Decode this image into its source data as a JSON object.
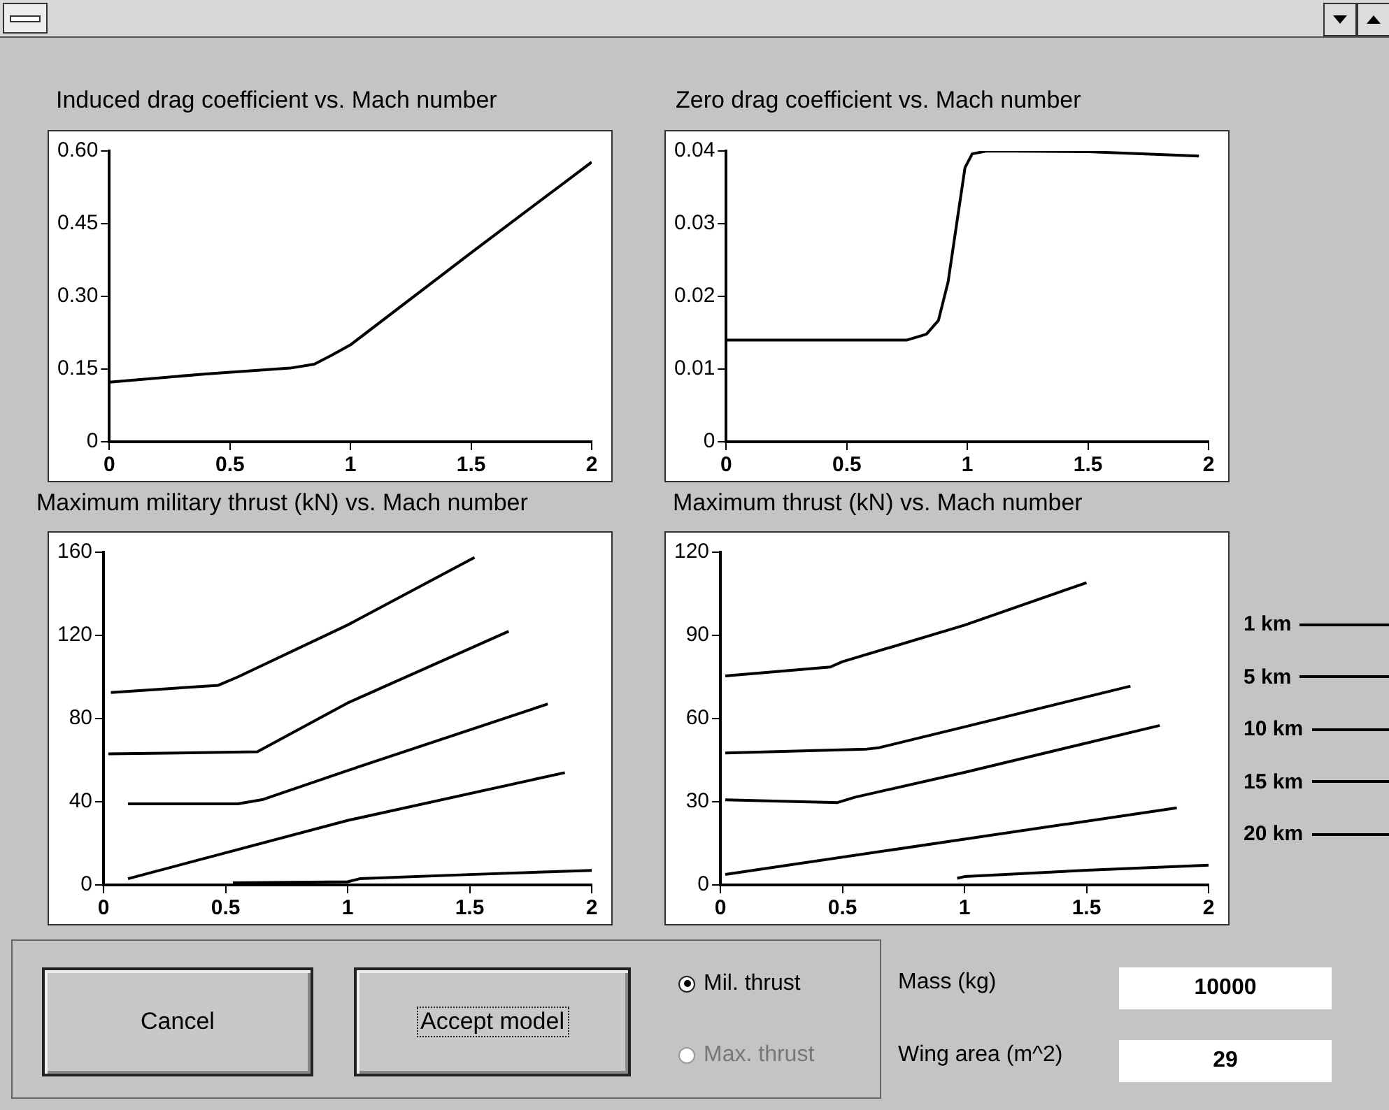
{
  "chart_data": [
    {
      "type": "line",
      "title": "Induced drag coefficient vs. Mach number",
      "marker": "none",
      "grid": false,
      "xlim": [
        0,
        2
      ],
      "xticks": [
        0,
        0.5,
        1,
        1.5,
        2
      ],
      "ylim": [
        0,
        0.6
      ],
      "yticks": [
        0,
        0.15,
        {
          "value": 0.3,
          "label": "0.30"
        },
        0.45,
        {
          "value": 0.6,
          "label": "0.60"
        }
      ],
      "series": [
        {
          "color": "#000000",
          "x": [
            0,
            0.4,
            0.75,
            0.85,
            0.92,
            1.0,
            1.5,
            2
          ],
          "values": [
            0.123,
            0.14,
            0.152,
            0.16,
            0.178,
            0.2,
            0.39,
            0.577
          ]
        }
      ]
    },
    {
      "type": "line",
      "title": "Zero drag coefficient vs. Mach number",
      "marker": "none",
      "grid": false,
      "xlim": [
        0,
        2
      ],
      "xticks": [
        0,
        0.5,
        1,
        1.5,
        2
      ],
      "ylim": [
        0,
        0.04
      ],
      "yticks": [
        0,
        0.01,
        0.02,
        0.03,
        0.04
      ],
      "series": [
        {
          "color": "#000000",
          "x": [
            0,
            0.75,
            0.83,
            0.88,
            0.92,
            0.96,
            0.99,
            1.02,
            1.08,
            1.5,
            1.96
          ],
          "values": [
            0.014,
            0.014,
            0.0148,
            0.0167,
            0.022,
            0.031,
            0.0377,
            0.0396,
            0.04,
            0.0399,
            0.0393
          ]
        }
      ]
    },
    {
      "type": "line",
      "title": "Maximum military thrust (kN) vs. Mach number",
      "marker": "none",
      "grid": false,
      "xlim": [
        0,
        2
      ],
      "xticks": [
        0,
        0.5,
        1,
        1.5,
        2
      ],
      "ylim": [
        0,
        160
      ],
      "yticks": [
        0,
        40,
        80,
        120,
        160
      ],
      "series": [
        {
          "color": "#000000",
          "x": [
            0.03,
            0.47,
            0.55,
            1.0,
            1.52
          ],
          "values": [
            92.5,
            96,
            100,
            125,
            157.5
          ]
        },
        {
          "color": "#000000",
          "x": [
            0.02,
            0.63,
            1.0,
            1.66
          ],
          "values": [
            63,
            64,
            87.5,
            122
          ]
        },
        {
          "color": "#000000",
          "x": [
            0.1,
            0.55,
            0.65,
            1.0,
            1.82
          ],
          "values": [
            39,
            39,
            41,
            55,
            87
          ]
        },
        {
          "color": "#000000",
          "x": [
            0.1,
            1.0,
            1.89
          ],
          "values": [
            3,
            31,
            54
          ]
        },
        {
          "color": "#000000",
          "x": [
            0.53,
            1.0,
            1.05,
            1.5,
            2.0
          ],
          "values": [
            1,
            1.5,
            3,
            5,
            7
          ]
        }
      ]
    },
    {
      "type": "line",
      "title": "Maximum thrust (kN) vs. Mach number",
      "marker": "none",
      "grid": false,
      "legend": "right",
      "xlim": [
        0,
        2
      ],
      "xticks": [
        0,
        0.5,
        1,
        1.5,
        2
      ],
      "ylim": [
        0,
        120
      ],
      "yticks": [
        0,
        30,
        60,
        90,
        120
      ],
      "series": [
        {
          "name": "1 km",
          "color": "#000000",
          "x": [
            0.02,
            0.45,
            0.5,
            1.0,
            1.5
          ],
          "values": [
            75.4,
            78.6,
            80.5,
            93.7,
            109
          ]
        },
        {
          "name": "5 km",
          "color": "#000000",
          "x": [
            0.02,
            0.6,
            0.65,
            1.0,
            1.68
          ],
          "values": [
            47.6,
            49,
            49.5,
            57,
            71.7
          ]
        },
        {
          "name": "10 km",
          "color": "#000000",
          "x": [
            0.02,
            0.48,
            0.55,
            1.0,
            1.8
          ],
          "values": [
            30.7,
            29.7,
            31.6,
            40.6,
            57.5
          ]
        },
        {
          "name": "15 km",
          "color": "#000000",
          "x": [
            0.02,
            1.0,
            1.87
          ],
          "values": [
            3.8,
            16.5,
            27.8
          ]
        },
        {
          "name": "20 km",
          "color": "#000000",
          "x": [
            0.97,
            1.0,
            1.5,
            2.0
          ],
          "values": [
            2.4,
            3,
            5.3,
            7.1
          ]
        }
      ]
    },
    {
      "type": "other",
      "annotations": [
        "Cancel",
        "Accept model",
        "Mil. thrust",
        "Max. thrust",
        "Mass (kg)",
        "10000",
        "Wing area (m^2)",
        "29"
      ]
    }
  ]
}
